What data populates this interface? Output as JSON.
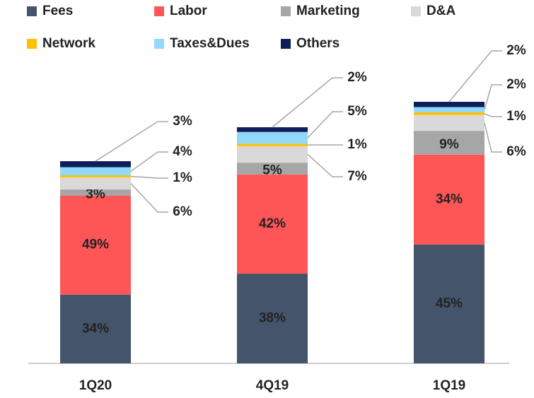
{
  "chart_data": {
    "type": "stacked-bar",
    "categories": [
      "1Q20",
      "4Q19",
      "1Q19"
    ],
    "series": [
      {
        "name": "Fees",
        "color": "#44546a",
        "values": [
          34,
          38,
          45
        ],
        "value_labels": [
          "34%",
          "38%",
          "45%"
        ]
      },
      {
        "name": "Labor",
        "color": "#fe5656",
        "values": [
          49,
          42,
          34
        ],
        "value_labels": [
          "49%",
          "42%",
          "34%"
        ]
      },
      {
        "name": "Marketing",
        "color": "#a6a6a6",
        "values": [
          3,
          5,
          9
        ],
        "value_labels": [
          "3%",
          "5%",
          "9%"
        ]
      },
      {
        "name": "D&A",
        "color": "#d9d9d9",
        "values": [
          6,
          7,
          6
        ],
        "value_labels": [
          "6%",
          "7%",
          "6%"
        ]
      },
      {
        "name": "Network",
        "color": "#ffc000",
        "values": [
          1,
          1,
          1
        ],
        "value_labels": [
          "1%",
          "1%",
          "1%"
        ]
      },
      {
        "name": "Taxes&Dues",
        "color": "#92d8f9",
        "values": [
          4,
          5,
          2
        ],
        "value_labels": [
          "4%",
          "5%",
          "2%"
        ]
      },
      {
        "name": "Others",
        "color": "#0d1e5a",
        "values": [
          3,
          2,
          2
        ],
        "value_labels": [
          "3%",
          "2%",
          "2%"
        ]
      }
    ]
  }
}
